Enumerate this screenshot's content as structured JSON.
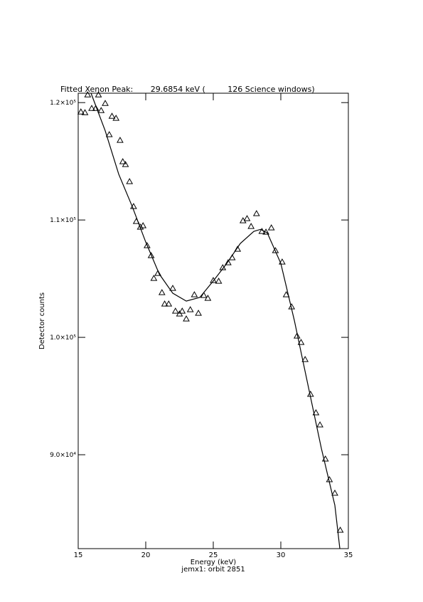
{
  "chart_data": {
    "type": "scatter",
    "title": "Fitted Xenon Peak:       29.6854 keV (         126 Science windows)",
    "subtitle": "jemx1: orbit 2851",
    "x_label": "Energy (keV)",
    "y_label": "Detector counts",
    "color": "#000000",
    "xlim": [
      15,
      35
    ],
    "xticks": [
      15,
      20,
      25,
      30,
      35
    ],
    "ylim": [
      82000,
      120800
    ],
    "yticks": [
      {
        "value": 90000,
        "label": "9.0×10⁴"
      },
      {
        "value": 100000,
        "label": "1.0×10⁵"
      },
      {
        "value": 110000,
        "label": "1.1×10⁵"
      },
      {
        "value": 120000,
        "label": "1.2×10⁵"
      }
    ],
    "points": {
      "x": [
        15.2,
        15.5,
        15.7,
        16.0,
        16.3,
        16.5,
        16.7,
        17.0,
        17.3,
        17.5,
        17.8,
        18.1,
        18.3,
        18.5,
        18.8,
        19.1,
        19.3,
        19.6,
        19.8,
        20.1,
        20.4,
        20.6,
        20.9,
        21.2,
        21.4,
        21.7,
        22.0,
        22.2,
        22.5,
        22.7,
        23.0,
        23.3,
        23.6,
        23.9,
        24.3,
        24.6,
        25.0,
        25.4,
        25.7,
        26.1,
        26.4,
        26.8,
        27.2,
        27.5,
        27.8,
        28.2,
        28.6,
        28.9,
        29.3,
        29.6,
        30.1,
        30.4,
        30.8,
        31.2,
        31.5,
        31.8,
        32.2,
        32.6,
        32.9,
        33.3,
        33.6,
        34.0,
        34.4
      ],
      "y": [
        119212,
        119150,
        120667,
        119515,
        119515,
        120667,
        119333,
        119939,
        117273,
        118848,
        118667,
        116788,
        114970,
        114727,
        113273,
        111152,
        109879,
        109394,
        109515,
        107818,
        106970,
        105030,
        105455,
        103818,
        102848,
        102848,
        104182,
        102242,
        102000,
        102242,
        101576,
        102364,
        103636,
        102061,
        103576,
        103333,
        104848,
        104788,
        105939,
        106364,
        106788,
        107515,
        109939,
        110121,
        109455,
        110545,
        109030,
        108970,
        109333,
        107394,
        106424,
        103636,
        102606,
        100121,
        99576,
        98121,
        95152,
        93576,
        92545,
        89636,
        87879,
        86727,
        83576
      ]
    },
    "fit": {
      "x": [
        15.95,
        17,
        18,
        19,
        20,
        21,
        22,
        23,
        24,
        25,
        26,
        27,
        28,
        28.5,
        29,
        30,
        31,
        32,
        33,
        34,
        34.37
      ],
      "y": [
        120800,
        117600,
        113900,
        111150,
        108120,
        105400,
        103760,
        103090,
        103400,
        104800,
        106300,
        108000,
        109030,
        109200,
        108900,
        106300,
        101450,
        96000,
        90550,
        85700,
        82000
      ]
    }
  }
}
